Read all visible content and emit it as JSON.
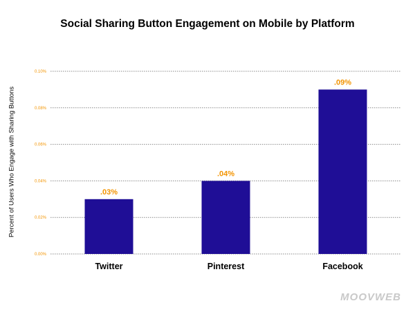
{
  "chart_data": {
    "type": "bar",
    "title": "Social Sharing Button Engagement on Mobile by Platform",
    "xlabel": "",
    "ylabel": "Percent of Users Who Engage with Sharing Buttons",
    "categories": [
      "Twitter",
      "Pinterest",
      "Facebook"
    ],
    "values": [
      0.03,
      0.04,
      0.09
    ],
    "data_labels": [
      ".03%",
      ".04%",
      ".09%"
    ],
    "ylim": [
      0,
      0.1
    ],
    "yticks": [
      0,
      0.02,
      0.04,
      0.06,
      0.08,
      0.1
    ],
    "ytick_labels": [
      "0.00%",
      "0.02%",
      "0.04%",
      "0.06%",
      "0.08%",
      "0.10%"
    ],
    "grid": true,
    "bar_color": "#1f0e96",
    "label_color": "#f39400"
  },
  "watermark": "MOOVWEB"
}
